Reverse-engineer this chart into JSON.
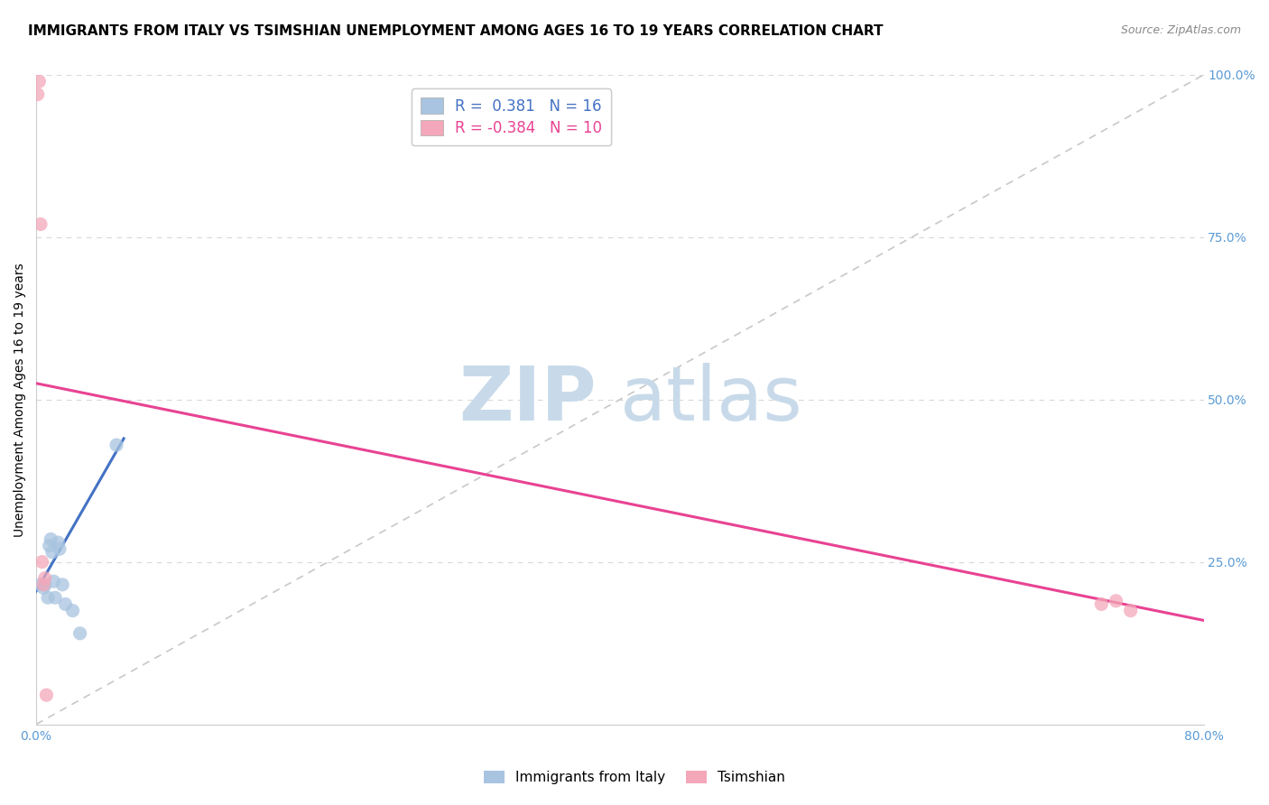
{
  "title": "IMMIGRANTS FROM ITALY VS TSIMSHIAN UNEMPLOYMENT AMONG AGES 16 TO 19 YEARS CORRELATION CHART",
  "source": "Source: ZipAtlas.com",
  "ylabel": "Unemployment Among Ages 16 to 19 years",
  "watermark_zip": "ZIP",
  "watermark_atlas": "atlas",
  "xlim": [
    0.0,
    0.8
  ],
  "ylim": [
    0.0,
    1.0
  ],
  "legend_italy_R": "0.381",
  "legend_italy_N": "16",
  "legend_tsimshian_R": "-0.384",
  "legend_tsimshian_N": "10",
  "legend_bottom": [
    "Immigrants from Italy",
    "Tsimshian"
  ],
  "italy_color": "#a8c4e0",
  "italy_line_color": "#4472c4",
  "tsimshian_color": "#f4a7b9",
  "tsimshian_line_color": "#e84393",
  "reference_line_color": "#c8c8c8",
  "grid_color": "#d8d8d8",
  "italy_scatter_x": [
    0.003,
    0.005,
    0.006,
    0.008,
    0.009,
    0.01,
    0.011,
    0.012,
    0.013,
    0.015,
    0.016,
    0.018,
    0.02,
    0.025,
    0.03,
    0.055
  ],
  "italy_scatter_y": [
    0.215,
    0.21,
    0.215,
    0.195,
    0.275,
    0.285,
    0.265,
    0.22,
    0.195,
    0.28,
    0.27,
    0.215,
    0.185,
    0.175,
    0.14,
    0.43
  ],
  "tsimshian_scatter_x": [
    0.001,
    0.002,
    0.003,
    0.004,
    0.005,
    0.006,
    0.007,
    0.73,
    0.74,
    0.75
  ],
  "tsimshian_scatter_y": [
    0.97,
    0.99,
    0.77,
    0.25,
    0.215,
    0.225,
    0.045,
    0.185,
    0.19,
    0.175
  ],
  "background_color": "#ffffff",
  "title_fontsize": 11,
  "axis_fontsize": 10,
  "scatter_size": 120,
  "italy_line_x": [
    0.0,
    0.06
  ],
  "italy_line_y": [
    0.205,
    0.44
  ],
  "tsimshian_line_x": [
    0.0,
    0.8
  ],
  "tsimshian_line_y": [
    0.525,
    0.16
  ]
}
